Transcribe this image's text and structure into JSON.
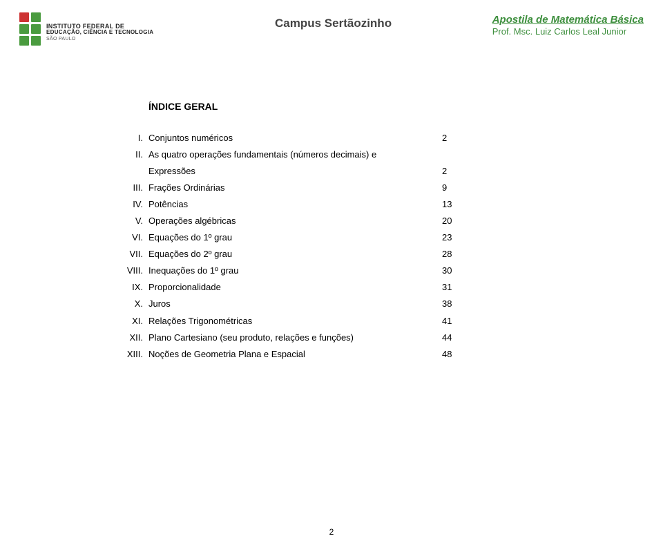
{
  "header": {
    "logo": {
      "line1": "INSTITUTO FEDERAL DE",
      "line2": "EDUCAÇÃO, CIÊNCIA E TECNOLOGIA",
      "line3": "SÃO PAULO",
      "colors": {
        "red": "#cd3333",
        "green": "#4a9b3f"
      }
    },
    "campus": "Campus Sertãozinho",
    "course_title": "Apostila de Matemática Básica",
    "professor": "Prof. Msc. Luiz Carlos Leal Junior"
  },
  "index": {
    "title": "ÍNDICE GERAL",
    "items": [
      {
        "num": "I.",
        "label": "Conjuntos numéricos",
        "page": "2"
      },
      {
        "num": "II.",
        "label_a": "As quatro operações fundamentais (números decimais) e",
        "label_b": "Expressões",
        "page": "2",
        "wrap": true
      },
      {
        "num": "III.",
        "label": "Frações Ordinárias",
        "page": "9"
      },
      {
        "num": "IV.",
        "label": "Potências",
        "page": "13"
      },
      {
        "num": "V.",
        "label": "Operações algébricas",
        "page": "20"
      },
      {
        "num": "VI.",
        "label": "Equações do 1º grau",
        "page": "23"
      },
      {
        "num": "VII.",
        "label": "Equações do 2º grau",
        "page": "28"
      },
      {
        "num": "VIII.",
        "label": "Inequações do 1º grau",
        "page": "30"
      },
      {
        "num": "IX.",
        "label": "Proporcionalidade",
        "page": "31"
      },
      {
        "num": "X.",
        "label": "Juros",
        "page": "38"
      },
      {
        "num": "XI.",
        "label": "Relações Trigonométricas",
        "page": "41"
      },
      {
        "num": "XII.",
        "label": "Plano Cartesiano (seu produto, relações e funções)",
        "page": "44"
      },
      {
        "num": "XIII.",
        "label": "Noções de Geometria Plana e Espacial",
        "page": "48"
      }
    ]
  },
  "page_number": "2"
}
